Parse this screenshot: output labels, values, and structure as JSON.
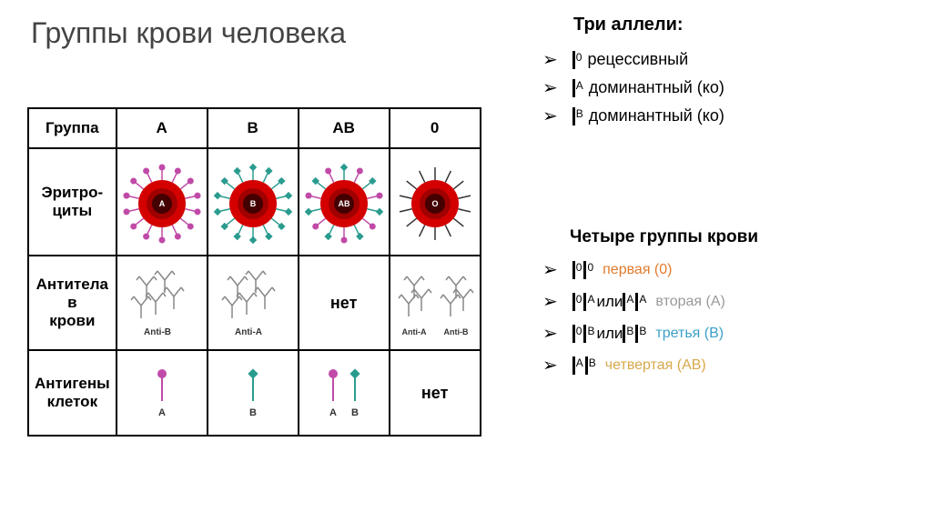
{
  "title": "Группы крови человека",
  "alleles": {
    "heading": "Три аллели:",
    "items": [
      {
        "sup": "0",
        "text": "рецессивный"
      },
      {
        "sup": "A",
        "text": "доминантный (ко)"
      },
      {
        "sup": "B",
        "text": "доминантный (ко)"
      }
    ]
  },
  "genotypes": {
    "heading": "Четыре группы крови",
    "items": [
      {
        "formula": [
          [
            "0"
          ],
          [
            "0"
          ]
        ],
        "join": "",
        "label": "первая (0)",
        "color": "#e07b2e"
      },
      {
        "formula": [
          [
            "0"
          ],
          [
            "A"
          ]
        ],
        "or_formula": [
          [
            "A"
          ],
          [
            "A"
          ]
        ],
        "join": " или ",
        "label": "вторая (A)",
        "color": "#9a9a9a"
      },
      {
        "formula": [
          [
            "0"
          ],
          [
            "B"
          ]
        ],
        "or_formula": [
          [
            "B"
          ],
          [
            "B"
          ]
        ],
        "join": " или ",
        "label": "третья (B)",
        "color": "#3aa0c8"
      },
      {
        "formula": [
          [
            "A"
          ],
          [
            "B"
          ]
        ],
        "join": "",
        "label": "четвертая (AB)",
        "color": "#d8a84a"
      }
    ]
  },
  "table": {
    "row_labels": [
      "Группа",
      "Эритро-\nциты",
      "Антитела\nв\nкрови",
      "Антигены\nклеток"
    ],
    "cols": [
      "A",
      "B",
      "AB",
      "0"
    ],
    "none_text": "нет",
    "cell_colors": {
      "core_outer": "#d40000",
      "core_mid": "#a00000",
      "core_inner": "#440000",
      "ab_color": "#888888",
      "antigen_a": "#c04aa8",
      "antigen_b": "#2a9c8f",
      "o_marker": "#333333",
      "cell_label": "#ffffff"
    },
    "antibody_labels": {
      "A": "Anti-B",
      "B": "Anti-A",
      "AB": "нет",
      "0a": "Anti-A",
      "0b": "Anti-B"
    },
    "antigen_labels": {
      "A": "A",
      "B": "B",
      "AB_a": "A",
      "AB_b": "B",
      "0": "нет"
    }
  }
}
